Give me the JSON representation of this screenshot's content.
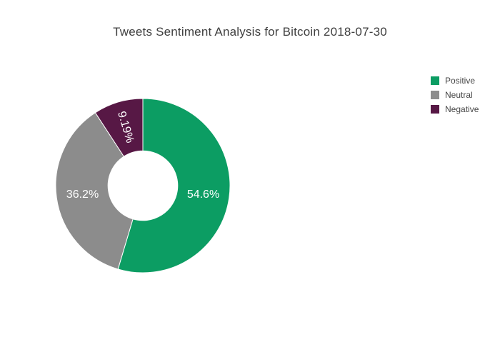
{
  "chart_data": {
    "type": "pie",
    "title": "Tweets Sentiment Analysis for Bitcoin 2018-07-30",
    "labels": [
      "Positive",
      "Neutral",
      "Negative"
    ],
    "values": [
      54.6,
      36.2,
      9.19
    ],
    "text_labels": [
      "54.6%",
      "36.2%",
      "9.19%"
    ],
    "colors": [
      "#0c9d63",
      "#8c8c8c",
      "#571845"
    ],
    "label_text_color": "#ffffff",
    "hole": 0.4,
    "direction": "clockwise",
    "start_angle_deg": 0,
    "legend_position": "right",
    "background": "#ffffff"
  }
}
